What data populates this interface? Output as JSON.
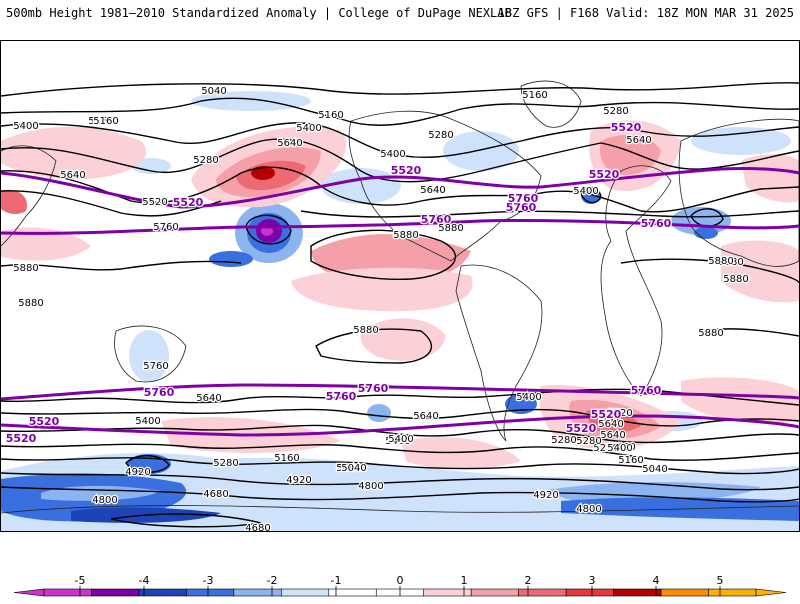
{
  "header": {
    "title": "500mb Height 1981–2010 Standardized Anomaly | College of DuPage NEXLAB",
    "run_info": "18Z GFS | F168 Valid: 18Z MON MAR 31 2025"
  },
  "colorbar": {
    "ticks": [
      "-5",
      "-4",
      "-3",
      "-2",
      "-1",
      "0",
      "1",
      "2",
      "3",
      "4",
      "5"
    ],
    "colors": [
      "#cc33cc",
      "#7a00a8",
      "#1c44b8",
      "#3a6fe0",
      "#8cb4f0",
      "#cfe2fb",
      "#ffffff",
      "#ffffff",
      "#fbd0d6",
      "#f5a0a8",
      "#ee6a72",
      "#e63a3a",
      "#b40000",
      "#ff8c00",
      "#ffb000"
    ]
  },
  "contours": {
    "black_labels": [
      "5040",
      "5160",
      "5280",
      "5400",
      "5520",
      "5640",
      "5760",
      "5880",
      "4920",
      "4800",
      "4680"
    ],
    "purple_labels": [
      "5520",
      "5760"
    ],
    "black_color": "#000000",
    "purple_color": "#8000a8"
  },
  "map_labels": [
    {
      "text": "5040"
    },
    {
      "text": "5160"
    },
    {
      "text": "5160"
    },
    {
      "text": "5400"
    },
    {
      "text": "5160"
    },
    {
      "text": "5400"
    },
    {
      "text": "5160"
    },
    {
      "text": "5280"
    },
    {
      "text": "5520"
    },
    {
      "text": "5640"
    },
    {
      "text": "5280"
    },
    {
      "text": "5400"
    },
    {
      "text": "5640"
    },
    {
      "text": "5520"
    },
    {
      "text": "5520"
    },
    {
      "text": "5760"
    },
    {
      "text": "5760"
    },
    {
      "text": "5880"
    },
    {
      "text": "5880"
    },
    {
      "text": "5760"
    },
    {
      "text": "5520"
    },
    {
      "text": "5640"
    },
    {
      "text": "5520"
    },
    {
      "text": "5280"
    },
    {
      "text": "5400"
    },
    {
      "text": "5760"
    },
    {
      "text": "5640"
    },
    {
      "text": "5760"
    },
    {
      "text": "5880"
    },
    {
      "text": "5880"
    },
    {
      "text": "5880"
    },
    {
      "text": "5880"
    },
    {
      "text": "5880"
    },
    {
      "text": "5880"
    },
    {
      "text": "5760"
    },
    {
      "text": "5760"
    },
    {
      "text": "5760"
    },
    {
      "text": "5760"
    },
    {
      "text": "5640"
    },
    {
      "text": "5520"
    },
    {
      "text": "5640"
    },
    {
      "text": "5400"
    },
    {
      "text": "5400"
    },
    {
      "text": "5520"
    },
    {
      "text": "5520"
    },
    {
      "text": "5640"
    },
    {
      "text": "5280"
    },
    {
      "text": "5160"
    },
    {
      "text": "5040"
    },
    {
      "text": "4920"
    },
    {
      "text": "4800"
    },
    {
      "text": "4920"
    },
    {
      "text": "4800"
    },
    {
      "text": "4680"
    },
    {
      "text": "4680"
    },
    {
      "text": "5160"
    },
    {
      "text": "5040"
    },
    {
      "text": "5280"
    },
    {
      "text": "5400"
    },
    {
      "text": "5520"
    },
    {
      "text": "5640"
    },
    {
      "text": "5760"
    },
    {
      "text": "5520"
    },
    {
      "text": "5400"
    },
    {
      "text": "5280"
    },
    {
      "text": "5400"
    },
    {
      "text": "5160"
    },
    {
      "text": "5040"
    },
    {
      "text": "4920"
    },
    {
      "text": "4800"
    },
    {
      "text": "5880"
    },
    {
      "text": "5280"
    }
  ]
}
